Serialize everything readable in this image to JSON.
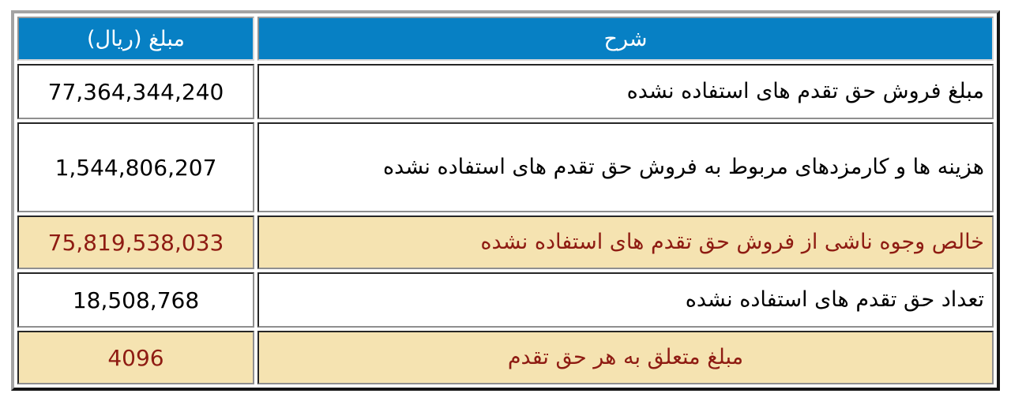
{
  "colors": {
    "header_bg": "#0780c4",
    "header_text": "#ffffff",
    "highlight_bg": "#f5e3b1",
    "highlight_text": "#8e1b12",
    "body_text": "#000000"
  },
  "table": {
    "headers": {
      "description": "شرح",
      "amount": "مبلغ (ریال)"
    },
    "rows": [
      {
        "description": "مبلغ فروش حق تقدم های استفاده نشده",
        "amount": "77,364,344,240",
        "highlighted": false
      },
      {
        "description": "هزینه ها و کارمزدهای مربوط به فروش حق تقدم های استفاده نشده",
        "amount": "1,544,806,207",
        "highlighted": false
      },
      {
        "description": "خالص وجوه ناشی از فروش حق تقدم های استفاده نشده",
        "amount": "75,819,538,033",
        "highlighted": true
      },
      {
        "description": "تعداد حق تقدم های استفاده نشده",
        "amount": "18,508,768",
        "highlighted": false
      },
      {
        "description": "مبلغ متعلق به هر حق تقدم",
        "amount": "4096",
        "highlighted": true
      }
    ]
  }
}
